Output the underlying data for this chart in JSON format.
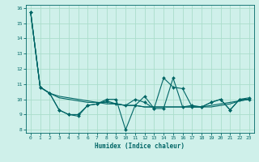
{
  "xlabel": "Humidex (Indice chaleur)",
  "background_color": "#cff0ea",
  "line_color": "#006666",
  "grid_color": "#aaddcc",
  "xlim": [
    -0.5,
    23.5
  ],
  "ylim": [
    7.8,
    16.2
  ],
  "yticks": [
    8,
    9,
    10,
    11,
    12,
    13,
    14,
    15,
    16
  ],
  "xticks": [
    0,
    1,
    2,
    3,
    4,
    5,
    6,
    7,
    8,
    9,
    10,
    11,
    12,
    13,
    14,
    15,
    16,
    17,
    18,
    19,
    20,
    21,
    22,
    23
  ],
  "series_with_markers": [
    [
      15.7,
      10.8,
      10.4,
      9.3,
      9.0,
      8.9,
      9.6,
      9.7,
      9.9,
      9.7,
      9.6,
      10.0,
      9.8,
      9.4,
      11.4,
      10.8,
      10.7,
      9.5,
      9.5,
      9.8,
      10.0,
      9.3,
      10.0,
      10.1
    ],
    [
      15.7,
      10.8,
      10.4,
      9.3,
      9.0,
      9.0,
      9.6,
      9.7,
      10.0,
      10.0,
      8.0,
      9.6,
      10.2,
      9.4,
      9.4,
      11.4,
      9.5,
      9.6,
      9.5,
      9.8,
      10.0,
      9.3,
      10.0,
      10.0
    ]
  ],
  "series_smooth": [
    [
      15.7,
      10.8,
      10.4,
      10.2,
      10.1,
      10.0,
      9.9,
      9.8,
      9.8,
      9.7,
      9.6,
      9.6,
      9.5,
      9.5,
      9.5,
      9.5,
      9.5,
      9.5,
      9.5,
      9.6,
      9.7,
      9.8,
      9.9,
      10.0
    ],
    [
      15.7,
      10.8,
      10.4,
      10.1,
      10.0,
      9.9,
      9.8,
      9.8,
      9.7,
      9.7,
      9.6,
      9.6,
      9.5,
      9.5,
      9.5,
      9.5,
      9.5,
      9.5,
      9.5,
      9.5,
      9.6,
      9.7,
      9.9,
      10.0
    ]
  ]
}
